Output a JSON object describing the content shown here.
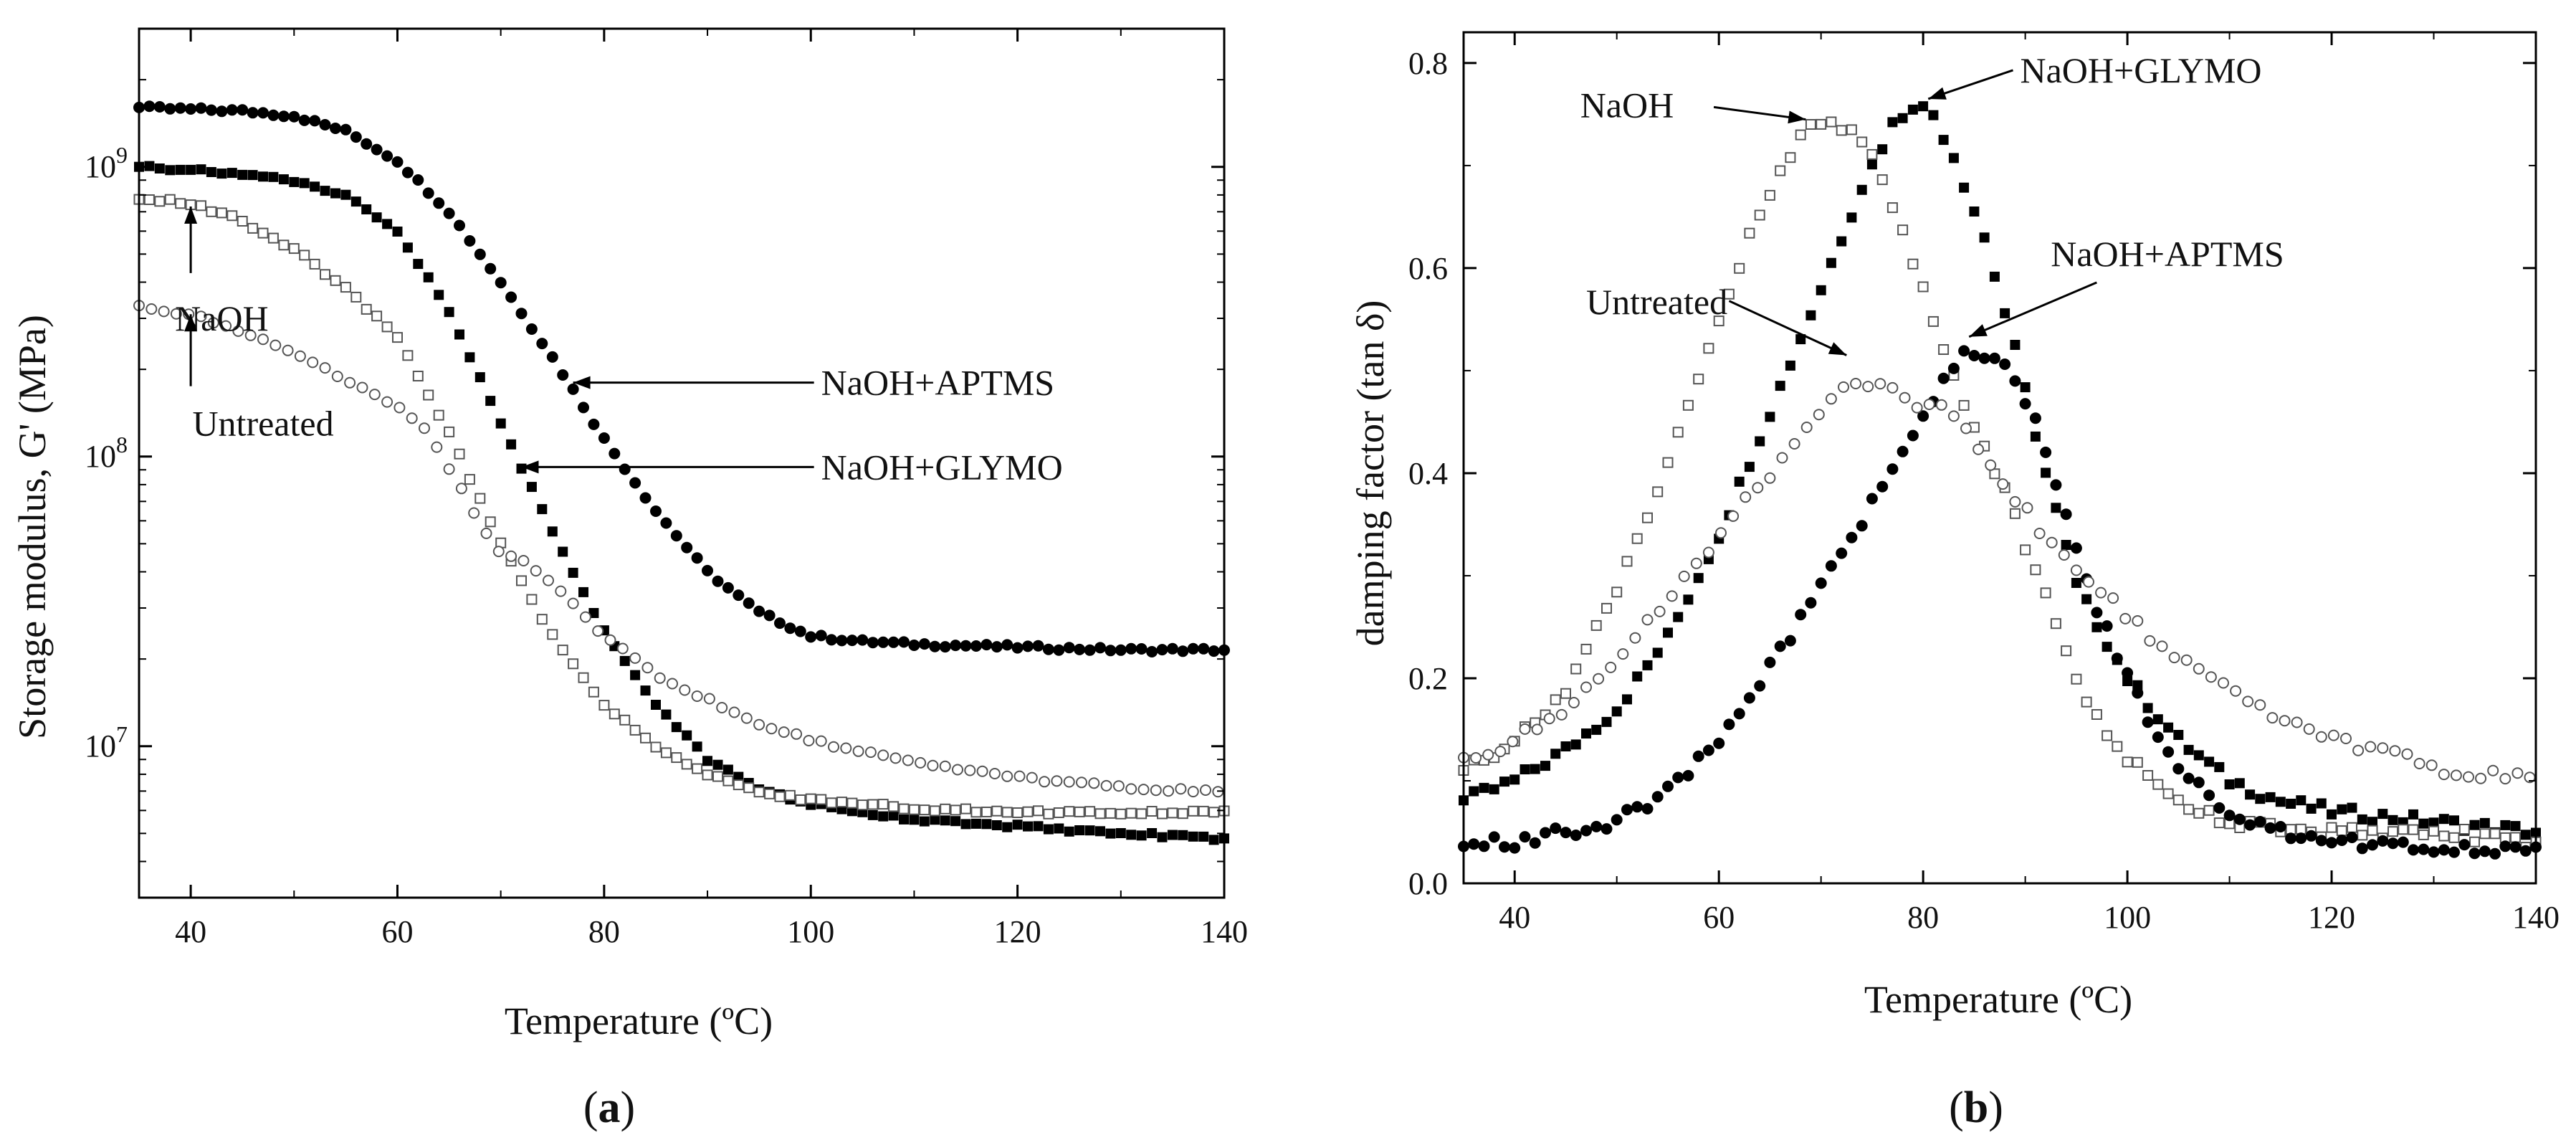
{
  "chart_data": [
    {
      "panel": "a",
      "type": "scatter",
      "yscale": "log",
      "xlabel": "Temperature (ºC)",
      "ylabel": "Storage modulus, G' (MPa)",
      "xlim": [
        35,
        140
      ],
      "ylim": [
        3000000,
        3000000000
      ],
      "xticks": [
        40,
        60,
        80,
        100,
        120,
        140
      ],
      "ytick_labels": [
        {
          "value": 10000000,
          "base": "10",
          "exp": "7"
        },
        {
          "value": 100000000,
          "base": "10",
          "exp": "8"
        },
        {
          "value": 1000000000,
          "base": "10",
          "exp": "9"
        }
      ],
      "series": [
        {
          "name": "NaOH+APTMS",
          "marker": "filled-circle",
          "step": 1,
          "points": [
            [
              35,
              1600000000.0
            ],
            [
              40,
              1580000000.0
            ],
            [
              45,
              1560000000.0
            ],
            [
              50,
              1500000000.0
            ],
            [
              55,
              1330000000.0
            ],
            [
              60,
              1050000000.0
            ],
            [
              65,
              700000000.0
            ],
            [
              70,
              400000000.0
            ],
            [
              75,
              220000000.0
            ],
            [
              80,
              115000000.0
            ],
            [
              85,
              65000000.0
            ],
            [
              90,
              40000000.0
            ],
            [
              95,
              29000000.0
            ],
            [
              100,
              24000000.0
            ],
            [
              105,
              23000000.0
            ],
            [
              110,
              22500000.0
            ],
            [
              120,
              22000000.0
            ],
            [
              130,
              21500000.0
            ],
            [
              140,
              21500000.0
            ]
          ]
        },
        {
          "name": "NaOH+GLYMO",
          "marker": "filled-square",
          "step": 1,
          "points": [
            [
              35,
              1000000000.0
            ],
            [
              40,
              980000000.0
            ],
            [
              45,
              950000000.0
            ],
            [
              50,
              900000000.0
            ],
            [
              55,
              800000000.0
            ],
            [
              60,
              600000000.0
            ],
            [
              65,
              320000000.0
            ],
            [
              70,
              130000000.0
            ],
            [
              75,
              55000000.0
            ],
            [
              80,
              25000000.0
            ],
            [
              85,
              14000000.0
            ],
            [
              90,
              9000000.0
            ],
            [
              95,
              7200000.0
            ],
            [
              100,
              6300000.0
            ],
            [
              105,
              5900000.0
            ],
            [
              110,
              5600000.0
            ],
            [
              120,
              5300000.0
            ],
            [
              130,
              5000000.0
            ],
            [
              140,
              4800000.0
            ]
          ]
        },
        {
          "name": "NaOH",
          "marker": "open-square",
          "step": 1,
          "points": [
            [
              35,
              780000000.0
            ],
            [
              40,
              750000000.0
            ],
            [
              45,
              650000000.0
            ],
            [
              50,
              520000000.0
            ],
            [
              55,
              380000000.0
            ],
            [
              60,
              260000000.0
            ],
            [
              65,
              120000000.0
            ],
            [
              70,
              50000000.0
            ],
            [
              75,
              24000000.0
            ],
            [
              80,
              14000000.0
            ],
            [
              85,
              10000000.0
            ],
            [
              90,
              8000000.0
            ],
            [
              95,
              7000000.0
            ],
            [
              100,
              6500000.0
            ],
            [
              110,
              6100000.0
            ],
            [
              120,
              5900000.0
            ],
            [
              130,
              5900000.0
            ],
            [
              140,
              5900000.0
            ]
          ]
        },
        {
          "name": "Untreated",
          "marker": "open-circle",
          "step": 1.2,
          "points": [
            [
              35,
              330000000.0
            ],
            [
              40,
              310000000.0
            ],
            [
              45,
              270000000.0
            ],
            [
              50,
              230000000.0
            ],
            [
              55,
              185000000.0
            ],
            [
              60,
              150000000.0
            ],
            [
              63,
              120000000.0
            ],
            [
              66,
              80000000.0
            ],
            [
              68,
              58000000.0
            ],
            [
              70,
              46000000.0
            ],
            [
              72,
              44000000.0
            ],
            [
              75,
              37000000.0
            ],
            [
              80,
              24000000.0
            ],
            [
              85,
              17500000.0
            ],
            [
              90,
              14500000.0
            ],
            [
              95,
              12000000.0
            ],
            [
              100,
              10500000.0
            ],
            [
              110,
              8800000.0
            ],
            [
              120,
              7800000.0
            ],
            [
              130,
              7200000.0
            ],
            [
              140,
              6900000.0
            ]
          ]
        }
      ],
      "annotations": [
        {
          "text": "NaOH+APTMS",
          "target": [
            77,
            180000000.0
          ],
          "text_at": [
            101,
            180000000.0
          ],
          "align": "start"
        },
        {
          "text": "NaOH+GLYMO",
          "target": [
            72,
            92000000.0
          ],
          "text_at": [
            101,
            92000000.0
          ],
          "align": "start"
        },
        {
          "text": "NaOH",
          "target": [
            40,
            730000000.0
          ],
          "text_at": [
            43,
            350000000.0
          ],
          "align": "middle",
          "arrow_from": [
            40,
            430000000.0
          ]
        },
        {
          "text": "Untreated",
          "target": [
            40,
            310000000.0
          ],
          "text_at": [
            47,
            152000000.0
          ],
          "align": "middle",
          "arrow_from": [
            40,
            175000000.0
          ]
        }
      ],
      "panel_label": "a"
    },
    {
      "panel": "b",
      "type": "scatter",
      "xlabel": "Temperature (ºC)",
      "ylabel": "damping factor (tan δ)",
      "xlim": [
        35,
        140
      ],
      "ylim": [
        0.0,
        0.83
      ],
      "xticks": [
        40,
        60,
        80,
        100,
        120,
        140
      ],
      "yticks": [
        0.0,
        0.2,
        0.4,
        0.6,
        0.8
      ],
      "ytick_labels": [
        "0.0",
        "0.2",
        "0.4",
        "0.6",
        "0.8"
      ],
      "series": [
        {
          "name": "NaOH+GLYMO",
          "marker": "filled-square",
          "step": 1,
          "points": [
            [
              35,
              0.08
            ],
            [
              40,
              0.1
            ],
            [
              45,
              0.13
            ],
            [
              50,
              0.17
            ],
            [
              55,
              0.24
            ],
            [
              60,
              0.34
            ],
            [
              65,
              0.46
            ],
            [
              70,
              0.58
            ],
            [
              74,
              0.68
            ],
            [
              77,
              0.74
            ],
            [
              79,
              0.76
            ],
            [
              81,
              0.75
            ],
            [
              83,
              0.71
            ],
            [
              86,
              0.63
            ],
            [
              89,
              0.52
            ],
            [
              92,
              0.4
            ],
            [
              95,
              0.29
            ],
            [
              100,
              0.2
            ],
            [
              105,
              0.14
            ],
            [
              110,
              0.1
            ],
            [
              115,
              0.08
            ],
            [
              120,
              0.07
            ],
            [
              130,
              0.06
            ],
            [
              140,
              0.05
            ]
          ]
        },
        {
          "name": "NaOH",
          "marker": "open-square",
          "step": 1,
          "points": [
            [
              35,
              0.11
            ],
            [
              40,
              0.14
            ],
            [
              45,
              0.19
            ],
            [
              50,
              0.29
            ],
            [
              55,
              0.41
            ],
            [
              60,
              0.55
            ],
            [
              63,
              0.63
            ],
            [
              66,
              0.7
            ],
            [
              69,
              0.74
            ],
            [
              72,
              0.74
            ],
            [
              75,
              0.71
            ],
            [
              78,
              0.64
            ],
            [
              81,
              0.55
            ],
            [
              84,
              0.47
            ],
            [
              88,
              0.38
            ],
            [
              92,
              0.28
            ],
            [
              96,
              0.18
            ],
            [
              100,
              0.12
            ],
            [
              105,
              0.08
            ],
            [
              110,
              0.06
            ],
            [
              120,
              0.05
            ],
            [
              130,
              0.05
            ],
            [
              140,
              0.04
            ]
          ]
        },
        {
          "name": "NaOH+APTMS",
          "marker": "filled-circle",
          "step": 1,
          "points": [
            [
              35,
              0.04
            ],
            [
              40,
              0.04
            ],
            [
              45,
              0.05
            ],
            [
              50,
              0.06
            ],
            [
              55,
              0.09
            ],
            [
              60,
              0.14
            ],
            [
              65,
              0.21
            ],
            [
              70,
              0.29
            ],
            [
              75,
              0.37
            ],
            [
              80,
              0.46
            ],
            [
              84,
              0.52
            ],
            [
              88,
              0.51
            ],
            [
              91,
              0.45
            ],
            [
              94,
              0.36
            ],
            [
              97,
              0.27
            ],
            [
              100,
              0.2
            ],
            [
              103,
              0.14
            ],
            [
              106,
              0.1
            ],
            [
              110,
              0.07
            ],
            [
              115,
              0.05
            ],
            [
              120,
              0.04
            ],
            [
              130,
              0.035
            ],
            [
              140,
              0.03
            ]
          ]
        },
        {
          "name": "Untreated",
          "marker": "open-circle",
          "step": 1.2,
          "points": [
            [
              35,
              0.12
            ],
            [
              40,
              0.14
            ],
            [
              45,
              0.17
            ],
            [
              50,
              0.22
            ],
            [
              55,
              0.28
            ],
            [
              60,
              0.34
            ],
            [
              65,
              0.4
            ],
            [
              70,
              0.46
            ],
            [
              73,
              0.49
            ],
            [
              76,
              0.49
            ],
            [
              79,
              0.47
            ],
            [
              82,
              0.46
            ],
            [
              85,
              0.43
            ],
            [
              88,
              0.39
            ],
            [
              91,
              0.35
            ],
            [
              95,
              0.31
            ],
            [
              100,
              0.26
            ],
            [
              105,
              0.22
            ],
            [
              110,
              0.19
            ],
            [
              115,
              0.16
            ],
            [
              120,
              0.14
            ],
            [
              125,
              0.13
            ],
            [
              130,
              0.11
            ],
            [
              140,
              0.1
            ]
          ]
        }
      ],
      "annotations": [
        {
          "text": "NaOH+GLYMO",
          "target": [
            80.5,
            0.765
          ],
          "text_at": [
            89.5,
            0.793
          ],
          "align": "start"
        },
        {
          "text": "NaOH",
          "target": [
            68.5,
            0.745
          ],
          "text_at": [
            51,
            0.759
          ],
          "align": "middle",
          "arrow_from": [
            59.5,
            0.757
          ]
        },
        {
          "text": "Untreated",
          "target": [
            72.5,
            0.515
          ],
          "text_at": [
            47,
            0.567
          ],
          "align": "start",
          "arrow_from": [
            61,
            0.568
          ]
        },
        {
          "text": "NaOH+APTMS",
          "target": [
            84.5,
            0.533
          ],
          "text_at": [
            92.5,
            0.614
          ],
          "align": "start",
          "arrow_from": [
            97,
            0.586
          ]
        }
      ],
      "panel_label": "b"
    }
  ]
}
